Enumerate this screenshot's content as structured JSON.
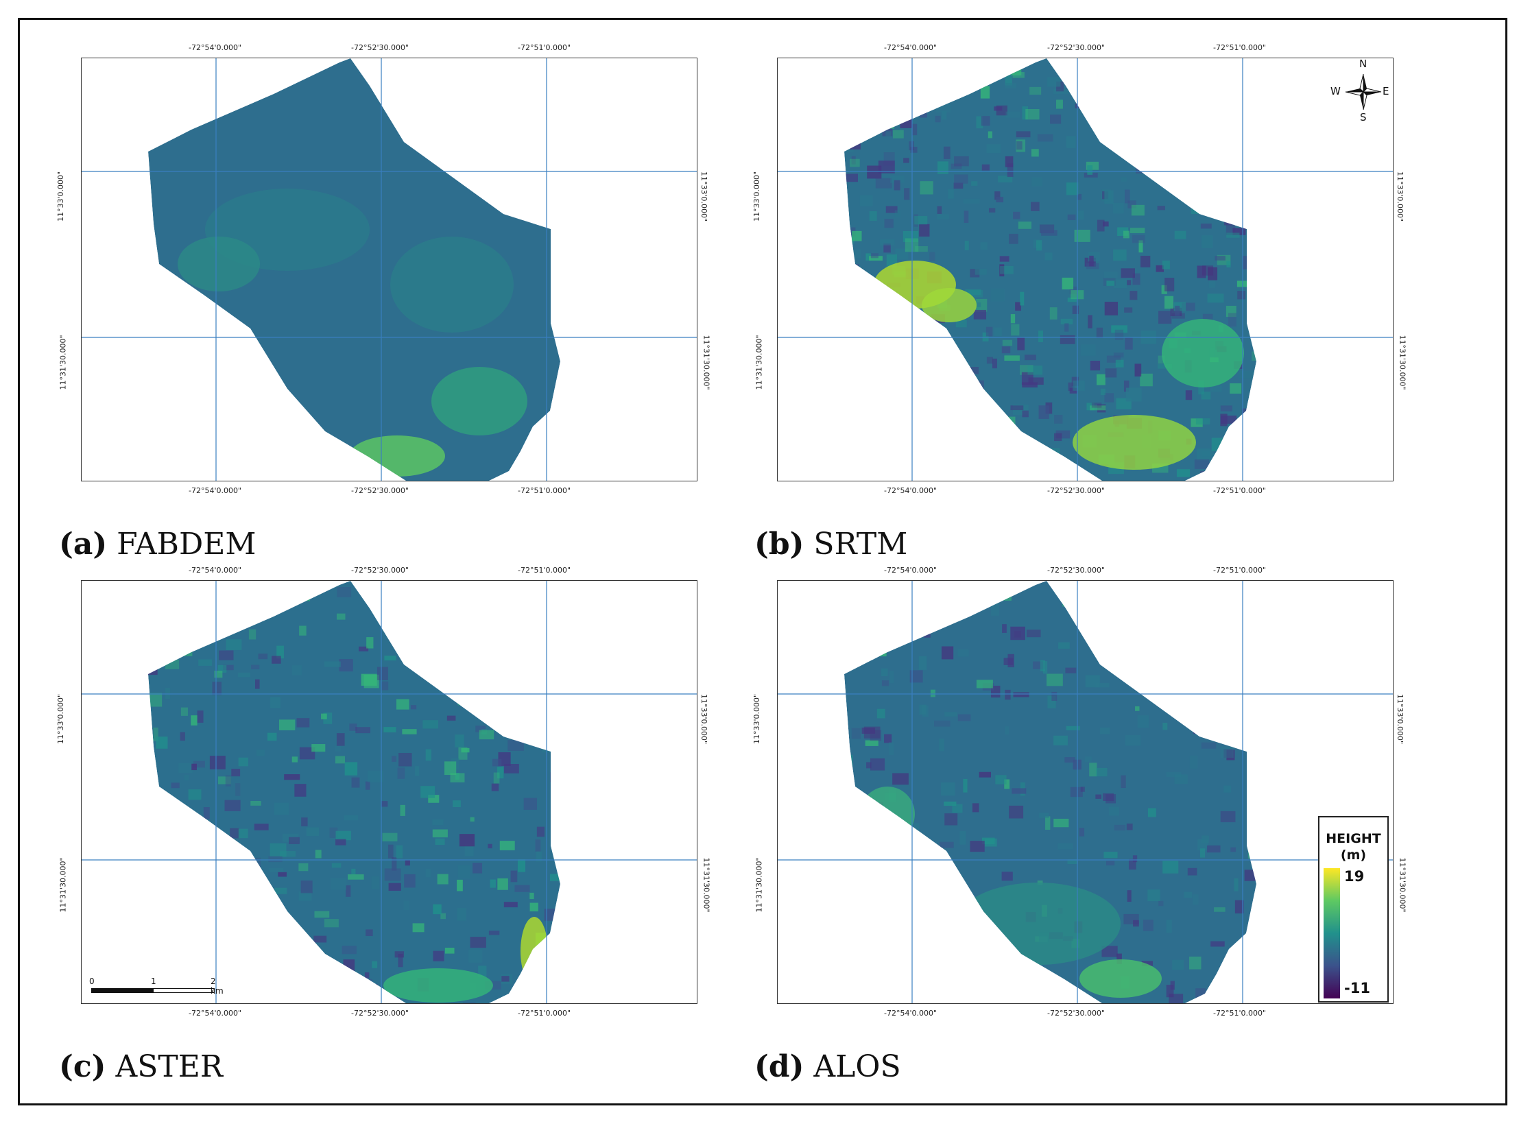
{
  "figure": {
    "panels": [
      {
        "id": "a",
        "letter": "(a)",
        "name": "FABDEM",
        "top_lon_labels": [
          "-72°54'0.000\"",
          "-72°52'30.000\"",
          "-72°51'0.000\""
        ],
        "bottom_lon_labels": [
          "-72°54'0.000\"",
          "-72°52'30.000\"",
          "-72°51'0.000\""
        ],
        "lat_labels": [
          "11°33'0.000\"",
          "11°31'30.000\""
        ]
      },
      {
        "id": "b",
        "letter": "(b)",
        "name": "SRTM",
        "top_lon_labels": [
          "-72°54'0.000\"",
          "-72°52'30.000\"",
          "-72°51'0.000\""
        ],
        "bottom_lon_labels": [
          "-72°54'0.000\"",
          "-72°52'30.000\"",
          "-72°51'0.000\""
        ],
        "lat_labels": [
          "11°33'0.000\"",
          "11°31'30.000\""
        ]
      },
      {
        "id": "c",
        "letter": "(c)",
        "name": "ASTER",
        "top_lon_labels": [
          "-72°54'0.000\"",
          "-72°52'30.000\"",
          "-72°51'0.000\""
        ],
        "bottom_lon_labels": [
          "-72°54'0.000\"",
          "-72°52'30.000\"",
          "-72°51'0.000\""
        ],
        "lat_labels": [
          "11°33'0.000\"",
          "11°31'30.000\""
        ]
      },
      {
        "id": "d",
        "letter": "(d)",
        "name": "ALOS",
        "top_lon_labels": [
          "-72°54'0.000\"",
          "-72°52'30.000\"",
          "-72°51'0.000\""
        ],
        "bottom_lon_labels": [
          "-72°54'0.000\"",
          "-72°52'30.000\"",
          "-72°51'0.000\""
        ],
        "lat_labels": [
          "11°33'0.000\"",
          "11°31'30.000\""
        ]
      }
    ],
    "compass": {
      "n": "N",
      "s": "S",
      "e": "E",
      "w": "W"
    },
    "scale_bar": {
      "labels": [
        "0",
        "1",
        "2 km"
      ]
    },
    "legend": {
      "title_line1": "HEIGHT",
      "title_line2": "(m)",
      "max": "19",
      "min": "-11",
      "colors": [
        "#fde725",
        "#5ec962",
        "#21918c",
        "#3b528b",
        "#440154"
      ]
    }
  }
}
